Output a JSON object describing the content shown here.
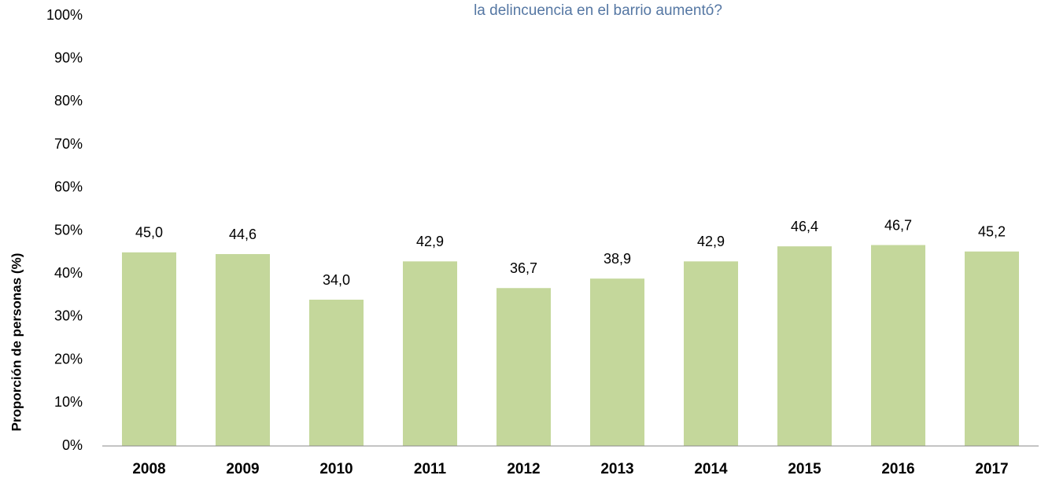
{
  "chart_data": {
    "type": "bar",
    "title": "la delincuencia en el barrio aumentó?",
    "y_label": "Proporción de personas (%)",
    "categories": [
      "2008",
      "2009",
      "2010",
      "2011",
      "2012",
      "2013",
      "2014",
      "2015",
      "2016",
      "2017"
    ],
    "values": [
      45.0,
      44.6,
      34.0,
      42.9,
      36.7,
      38.9,
      42.9,
      46.4,
      46.7,
      45.2
    ],
    "value_labels": [
      "45,0",
      "44,6",
      "34,0",
      "42,9",
      "36,7",
      "38,9",
      "42,9",
      "46,4",
      "46,7",
      "45,2"
    ],
    "color": "#c4d79b",
    "ylim": [
      0,
      100
    ],
    "yticks": [
      {
        "value": 0,
        "label": "0%"
      },
      {
        "value": 10,
        "label": "10%"
      },
      {
        "value": 20,
        "label": "20%"
      },
      {
        "value": 30,
        "label": "30%"
      },
      {
        "value": 40,
        "label": "40%"
      },
      {
        "value": 50,
        "label": "50%"
      },
      {
        "value": 60,
        "label": "60%"
      },
      {
        "value": 70,
        "label": "70%"
      },
      {
        "value": 80,
        "label": "80%"
      },
      {
        "value": 90,
        "label": "90%"
      },
      {
        "value": 100,
        "label": "100%"
      }
    ],
    "grid": false
  }
}
